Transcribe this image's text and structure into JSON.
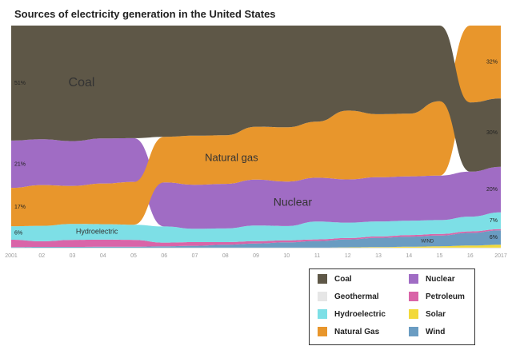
{
  "chart_data": {
    "type": "area",
    "title": "Sources of electricity generation in the United States",
    "x_ticks": [
      "2001",
      "02",
      "03",
      "04",
      "05",
      "06",
      "07",
      "08",
      "09",
      "10",
      "11",
      "12",
      "13",
      "14",
      "15",
      "16",
      "2017"
    ],
    "x_years": [
      2001,
      2002,
      2003,
      2004,
      2005,
      2006,
      2007,
      2008,
      2009,
      2010,
      2011,
      2012,
      2013,
      2014,
      2015,
      2016,
      2017
    ],
    "ylim": [
      0,
      100
    ],
    "stack_order_note": "bottom to top (ranked each year)",
    "series": [
      {
        "key": "coal",
        "name": "Coal",
        "color": "#5e5747",
        "values": [
          51,
          50.1,
          50.8,
          49.8,
          49.6,
          49.0,
          48.5,
          48.2,
          44.5,
          44.8,
          42.3,
          37.4,
          38.9,
          38.7,
          33.2,
          30.4,
          30.0
        ]
      },
      {
        "key": "natural_gas",
        "name": "Natural Gas",
        "color": "#e8962c",
        "values": [
          17,
          17.9,
          16.7,
          17.9,
          18.8,
          20.1,
          21.6,
          21.4,
          23.3,
          23.9,
          24.7,
          30.3,
          27.7,
          27.5,
          32.7,
          33.8,
          32.0
        ]
      },
      {
        "key": "nuclear",
        "name": "Nuclear",
        "color": "#a06cc4",
        "values": [
          21,
          20.2,
          19.7,
          19.9,
          19.3,
          19.4,
          19.4,
          19.6,
          20.2,
          19.6,
          19.3,
          19.0,
          19.4,
          19.5,
          19.5,
          19.8,
          20.0
        ]
      },
      {
        "key": "hydroelectric",
        "name": "Hydroelectric",
        "color": "#7ddfe6",
        "values": [
          6,
          6.8,
          7.0,
          6.8,
          6.7,
          7.1,
          5.9,
          6.0,
          6.9,
          6.3,
          7.9,
          6.8,
          6.6,
          6.3,
          6.1,
          6.5,
          7.4
        ]
      },
      {
        "key": "petroleum",
        "name": "Petroleum",
        "color": "#d964a8",
        "values": [
          3.3,
          2.5,
          3.1,
          3.1,
          3.0,
          1.6,
          1.6,
          1.1,
          1.0,
          0.9,
          0.7,
          0.6,
          0.6,
          0.7,
          0.7,
          0.6,
          0.5
        ]
      },
      {
        "key": "geothermal",
        "name": "Geothermal",
        "color": "#e6e6e6",
        "values": [
          0.4,
          0.4,
          0.4,
          0.4,
          0.4,
          0.4,
          0.4,
          0.4,
          0.4,
          0.4,
          0.4,
          0.4,
          0.4,
          0.4,
          0.4,
          0.4,
          0.4
        ]
      },
      {
        "key": "solar",
        "name": "Solar",
        "color": "#f2d93a",
        "values": [
          0,
          0,
          0,
          0,
          0,
          0,
          0,
          0,
          0,
          0,
          0,
          0.1,
          0.2,
          0.4,
          0.6,
          0.9,
          1.3
        ]
      },
      {
        "key": "wind",
        "name": "Wind",
        "color": "#6a9cc2",
        "values": [
          0.2,
          0.3,
          0.3,
          0.4,
          0.4,
          0.6,
          0.8,
          1.3,
          1.8,
          2.3,
          2.9,
          3.5,
          4.1,
          4.4,
          4.7,
          5.6,
          6.3
        ]
      }
    ],
    "start_labels": [
      {
        "series": "coal",
        "text": "51%"
      },
      {
        "series": "nuclear",
        "text": "21%"
      },
      {
        "series": "natural_gas",
        "text": "17%"
      },
      {
        "series": "hydroelectric",
        "text": "6%"
      }
    ],
    "end_labels": [
      {
        "series": "natural_gas",
        "text": "32%"
      },
      {
        "series": "coal",
        "text": "30%"
      },
      {
        "series": "nuclear",
        "text": "20%"
      },
      {
        "series": "hydroelectric",
        "text": "7%"
      },
      {
        "series": "wind",
        "text": "6%"
      }
    ],
    "inline_labels": [
      {
        "series": "coal",
        "text": "Coal",
        "year": 2003.3,
        "size": 16
      },
      {
        "series": "natural_gas",
        "text": "Natural gas",
        "year": 2008.2,
        "size": 13
      },
      {
        "series": "nuclear",
        "text": "Nuclear",
        "year": 2010.2,
        "size": 14
      },
      {
        "series": "hydroelectric",
        "text": "Hydroelectric",
        "year": 2003.8,
        "size": 9
      },
      {
        "series": "wind",
        "text": "WIND",
        "year": 2014.6,
        "size": 6
      }
    ]
  },
  "legend": {
    "items": [
      {
        "key": "coal",
        "label": "Coal",
        "color": "#5e5747"
      },
      {
        "key": "nuclear",
        "label": "Nuclear",
        "color": "#a06cc4"
      },
      {
        "key": "geothermal",
        "label": "Geothermal",
        "color": "#e6e6e6"
      },
      {
        "key": "petroleum",
        "label": "Petroleum",
        "color": "#d964a8"
      },
      {
        "key": "hydroelectric",
        "label": "Hydroelectric",
        "color": "#7ddfe6"
      },
      {
        "key": "solar",
        "label": "Solar",
        "color": "#f2d93a"
      },
      {
        "key": "natural_gas",
        "label": "Natural Gas",
        "color": "#e8962c"
      },
      {
        "key": "wind",
        "label": "Wind",
        "color": "#6a9cc2"
      }
    ]
  }
}
